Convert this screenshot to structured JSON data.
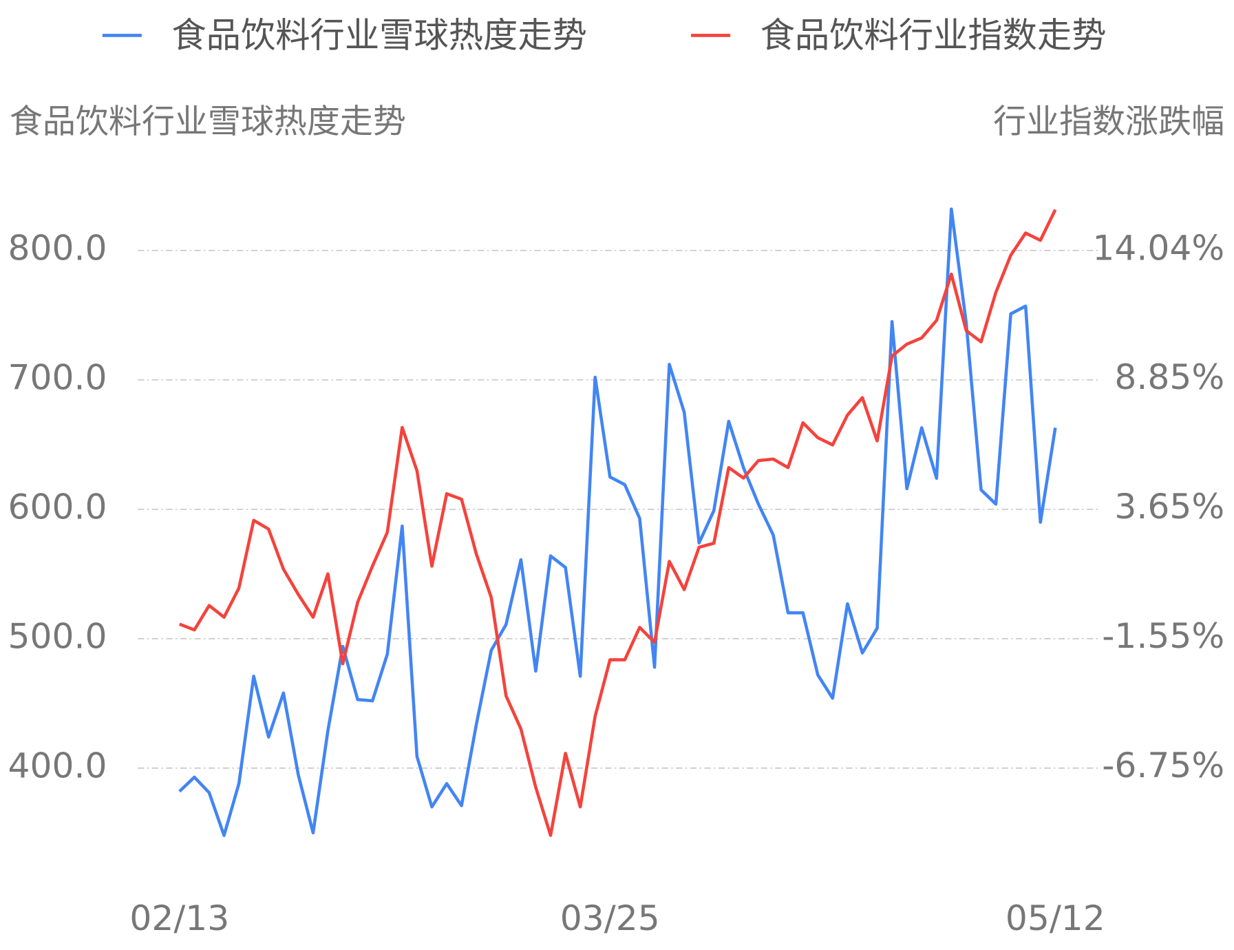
{
  "chart_data": {
    "type": "line",
    "y_label": "食品饮料行业雪球热度走势",
    "y2_label": "行业指数涨跌幅",
    "categories": [
      "02/13",
      null,
      null,
      null,
      null,
      null,
      null,
      null,
      null,
      null,
      null,
      null,
      null,
      null,
      null,
      null,
      null,
      null,
      null,
      null,
      null,
      null,
      null,
      null,
      null,
      null,
      null,
      null,
      null,
      "03/25",
      null,
      null,
      null,
      null,
      null,
      null,
      null,
      null,
      null,
      null,
      null,
      null,
      null,
      null,
      null,
      null,
      null,
      null,
      null,
      null,
      null,
      null,
      null,
      null,
      null,
      null,
      null,
      null,
      null,
      "05/12"
    ],
    "series": [
      {
        "name": "食品饮料行业雪球热度走势",
        "color": "#4285f4",
        "axis": "y",
        "values": [
          382,
          393,
          381,
          348,
          388,
          471,
          424,
          458,
          395,
          350,
          429,
          494,
          453,
          452,
          488,
          587,
          409,
          370,
          388,
          371,
          434,
          491,
          511,
          561,
          475,
          564,
          555,
          471,
          702,
          625,
          619,
          593,
          478,
          712,
          675,
          574,
          599,
          668,
          632,
          604,
          580,
          520,
          520,
          472,
          454,
          527,
          489,
          508,
          745,
          616,
          663,
          624,
          832,
          744,
          615,
          604,
          751,
          757,
          590,
          663
        ]
      },
      {
        "name": "食品饮料行业指数走势",
        "color": "#f4433c",
        "axis": "y2",
        "values": [
          -0.97,
          -1.2,
          -0.22,
          -0.69,
          0.48,
          3.2,
          2.85,
          1.24,
          0.23,
          -0.69,
          1.05,
          -2.56,
          -0.09,
          1.36,
          2.72,
          6.93,
          5.19,
          1.36,
          4.27,
          4.05,
          1.84,
          0.1,
          -3.85,
          -5.18,
          -7.52,
          -9.45,
          -6.16,
          -8.31,
          -4.67,
          -2.4,
          -2.4,
          -1.1,
          -1.7,
          1.55,
          0.42,
          2.12,
          2.28,
          5.32,
          4.9,
          5.6,
          5.66,
          5.32,
          7.12,
          6.52,
          6.23,
          7.43,
          8.13,
          6.39,
          9.8,
          10.28,
          10.53,
          11.23,
          13.09,
          10.82,
          10.37,
          12.36,
          13.85,
          14.74,
          14.45,
          15.68
        ]
      }
    ],
    "ylim": [
      330,
      850
    ],
    "yticks": [
      {
        "value": 400,
        "label": "400.0"
      },
      {
        "value": 500,
        "label": "500.0"
      },
      {
        "value": 600,
        "label": "600.0"
      },
      {
        "value": 700,
        "label": "700.0"
      },
      {
        "value": 800,
        "label": "800.0"
      }
    ],
    "y2lim": [
      -10.39,
      16.64
    ],
    "y2ticks": [
      {
        "value": -6.75,
        "label": "-6.75%"
      },
      {
        "value": -1.55,
        "label": "-1.55%"
      },
      {
        "value": 3.65,
        "label": "3.65%"
      },
      {
        "value": 8.85,
        "label": "8.85%"
      },
      {
        "value": 14.04,
        "label": "14.04%"
      }
    ],
    "grid": true,
    "legend": "top"
  }
}
